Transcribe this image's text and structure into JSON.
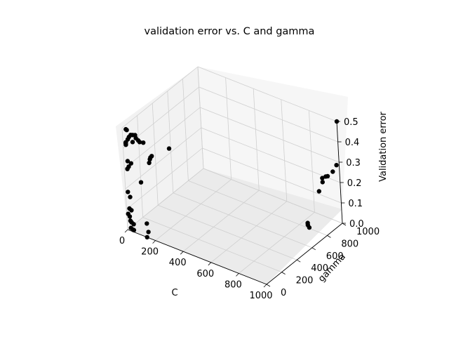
{
  "chart_data": {
    "type": "scatter",
    "title": "validation error vs. C and gamma",
    "xlabel": "C",
    "ylabel": "gamma",
    "zlabel": "Validation error",
    "xlim": [
      0,
      1000
    ],
    "ylim": [
      0,
      1000
    ],
    "zlim": [
      0,
      0.5
    ],
    "x_ticks": [
      "0",
      "200",
      "400",
      "600",
      "800",
      "1000"
    ],
    "y_ticks": [
      "0",
      "200",
      "400",
      "600",
      "800",
      "1000"
    ],
    "z_ticks": [
      "0.0",
      "0.1",
      "0.2",
      "0.3",
      "0.4",
      "0.5"
    ],
    "grid": true,
    "marker_color": "#000000",
    "pane_color": "#f2f2f2",
    "points_pixel_reference_note": "",
    "points": [
      {
        "c": 27,
        "gamma": 0,
        "error": 0.5
      },
      {
        "c": 33,
        "gamma": 0,
        "error": 0.498
      },
      {
        "c": 97,
        "gamma": 0,
        "error": 0.475
      },
      {
        "c": 1000,
        "gamma": 1000,
        "error": 0.5
      },
      {
        "c": 5,
        "gamma": 150,
        "error": 0.42
      },
      {
        "c": 5,
        "gamma": 120,
        "error": 0.43
      },
      {
        "c": 8,
        "gamma": 90,
        "error": 0.44
      },
      {
        "c": 12,
        "gamma": 60,
        "error": 0.44
      },
      {
        "c": 14,
        "gamma": 40,
        "error": 0.435
      },
      {
        "c": 10,
        "gamma": 20,
        "error": 0.425
      },
      {
        "c": 16,
        "gamma": 10,
        "error": 0.43
      },
      {
        "c": 20,
        "gamma": 0,
        "error": 0.43
      },
      {
        "c": 18,
        "gamma": 5,
        "error": 0.42
      },
      {
        "c": 60,
        "gamma": 20,
        "error": 0.44
      },
      {
        "c": 90,
        "gamma": 40,
        "error": 0.45
      },
      {
        "c": 100,
        "gamma": 40,
        "error": 0.445
      },
      {
        "c": 115,
        "gamma": 60,
        "error": 0.44
      },
      {
        "c": 160,
        "gamma": 80,
        "error": 0.38
      },
      {
        "c": 150,
        "gamma": 80,
        "error": 0.37
      },
      {
        "c": 145,
        "gamma": 80,
        "error": 0.36
      },
      {
        "c": 150,
        "gamma": 60,
        "error": 0.35
      },
      {
        "c": 250,
        "gamma": 150,
        "error": 0.42
      },
      {
        "c": 10,
        "gamma": 30,
        "error": 0.33
      },
      {
        "c": 40,
        "gamma": 20,
        "error": 0.33
      },
      {
        "c": 10,
        "gamma": 40,
        "error": 0.3
      },
      {
        "c": 5,
        "gamma": 30,
        "error": 0.29
      },
      {
        "c": 100,
        "gamma": 30,
        "error": 0.25
      },
      {
        "c": 5,
        "gamma": 20,
        "error": 0.18
      },
      {
        "c": 8,
        "gamma": 40,
        "error": 0.15
      },
      {
        "c": 10,
        "gamma": 20,
        "error": 0.1
      },
      {
        "c": 30,
        "gamma": 10,
        "error": 0.1
      },
      {
        "c": 10,
        "gamma": 0,
        "error": 0.08
      },
      {
        "c": 15,
        "gamma": 10,
        "error": 0.065
      },
      {
        "c": 18,
        "gamma": 10,
        "error": 0.045
      },
      {
        "c": 20,
        "gamma": 20,
        "error": 0.035
      },
      {
        "c": 35,
        "gamma": 20,
        "error": 0.03
      },
      {
        "c": 25,
        "gamma": 0,
        "error": 0.015
      },
      {
        "c": 40,
        "gamma": 0,
        "error": 0.01
      },
      {
        "c": 40,
        "gamma": 10,
        "error": 0.005
      },
      {
        "c": 120,
        "gamma": 40,
        "error": 0.05
      },
      {
        "c": 140,
        "gamma": 20,
        "error": 0.02
      },
      {
        "c": 140,
        "gamma": 0,
        "error": 0.0
      },
      {
        "c": 900,
        "gamma": 950,
        "error": 0.21
      },
      {
        "c": 900,
        "gamma": 950,
        "error": 0.19
      },
      {
        "c": 920,
        "gamma": 960,
        "error": 0.22
      },
      {
        "c": 940,
        "gamma": 950,
        "error": 0.23
      },
      {
        "c": 950,
        "gamma": 1000,
        "error": 0.24
      },
      {
        "c": 980,
        "gamma": 1000,
        "error": 0.28
      },
      {
        "c": 900,
        "gamma": 900,
        "error": 0.16
      },
      {
        "c": 920,
        "gamma": 700,
        "error": 0.07
      },
      {
        "c": 920,
        "gamma": 700,
        "error": 0.06
      },
      {
        "c": 930,
        "gamma": 700,
        "error": 0.05
      }
    ]
  }
}
